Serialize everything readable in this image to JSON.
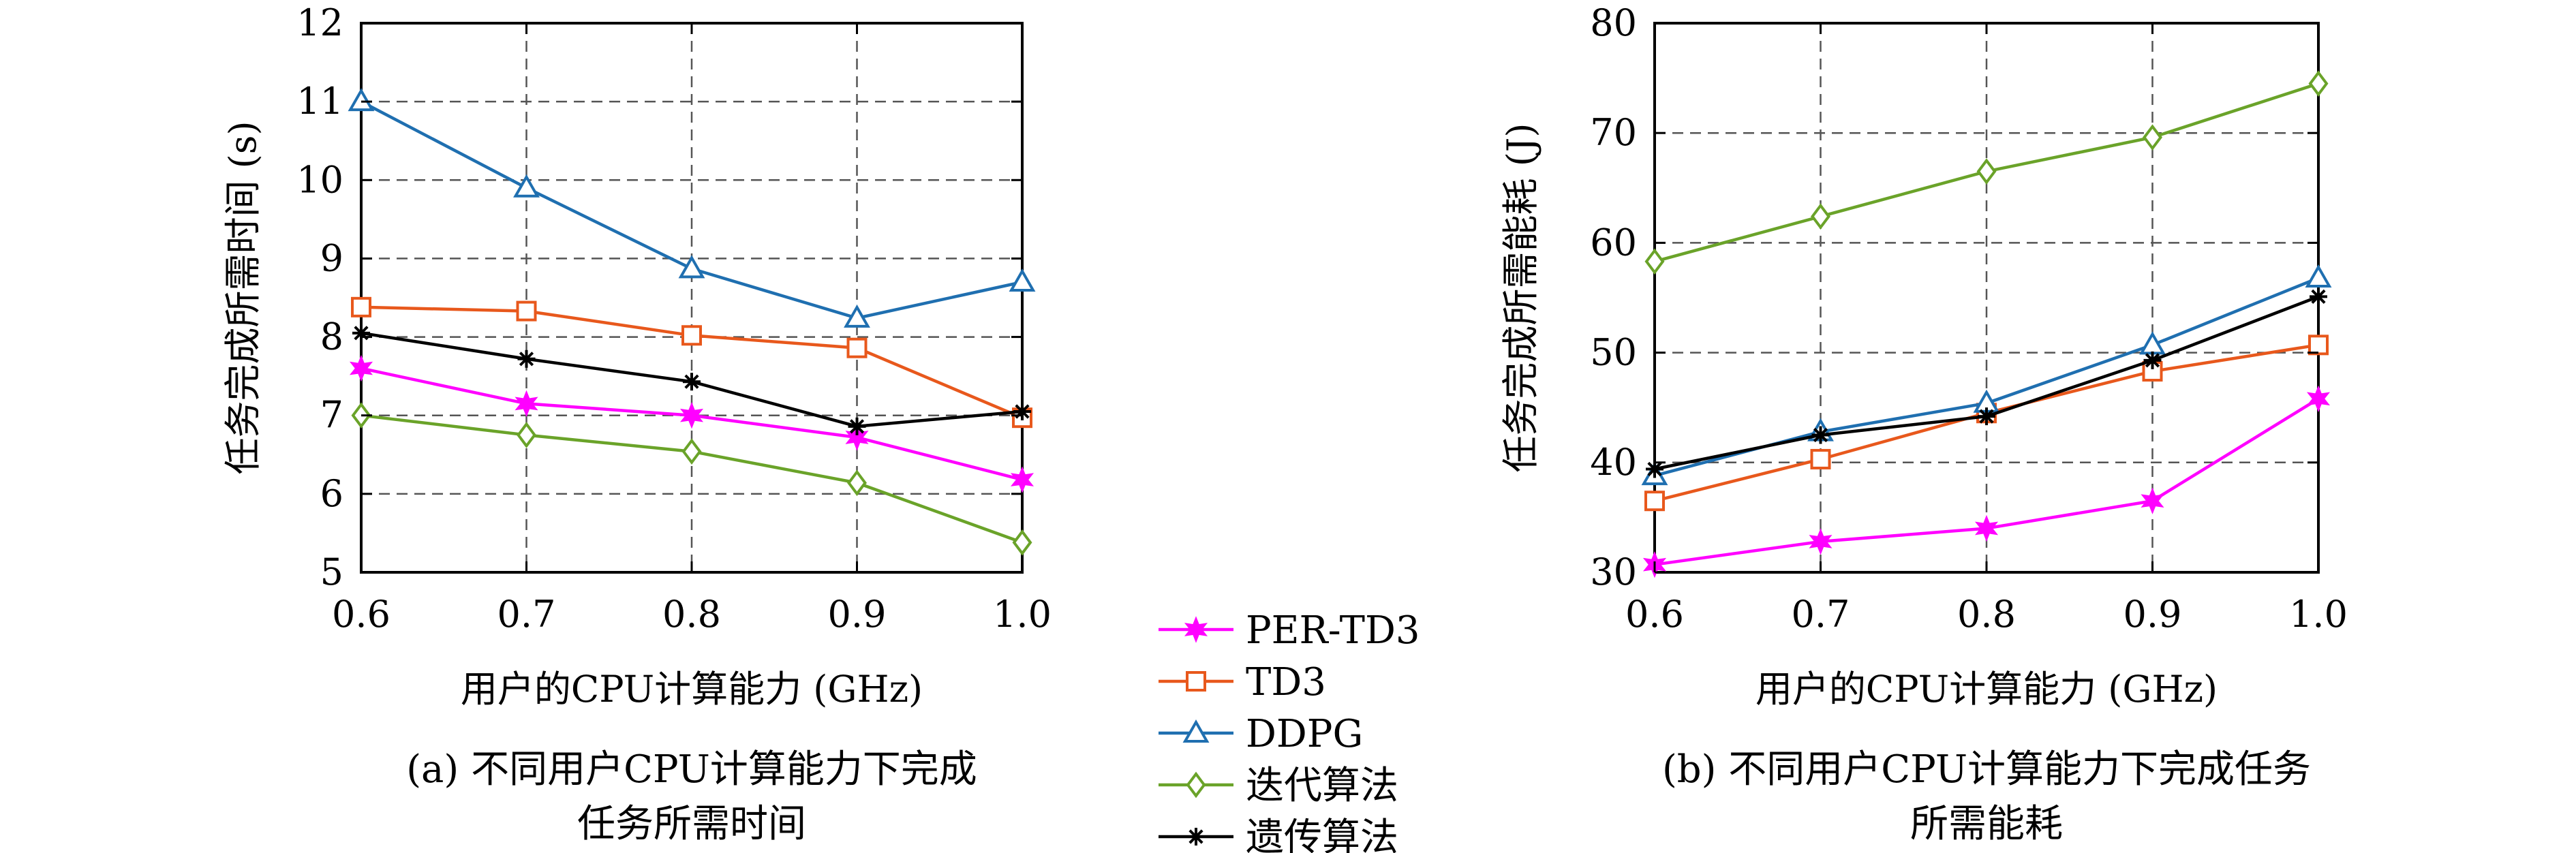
{
  "chart_data": [
    {
      "type": "line",
      "x": [
        0.6,
        0.7,
        0.8,
        0.9,
        1.0
      ],
      "xticks": [
        "0.6",
        "0.7",
        "0.8",
        "0.9",
        "1.0"
      ],
      "yticks": [
        "5",
        "6",
        "7",
        "8",
        "9",
        "10",
        "11",
        "12"
      ],
      "xlim": [
        0.6,
        1.0
      ],
      "ylim": [
        5,
        12
      ],
      "xlabel": "用户的CPU计算能力 (GHz)",
      "ylabel": "任务完成所需时间 (s)",
      "caption_lines": [
        "(a) 不同用户CPU计算能力下完成",
        "任务所需时间"
      ],
      "grid": true,
      "series": [
        {
          "name": "PER-TD3",
          "values": [
            7.6,
            7.15,
            7.0,
            6.72,
            6.18
          ]
        },
        {
          "name": "TD3",
          "values": [
            8.38,
            8.33,
            8.02,
            7.86,
            6.97
          ]
        },
        {
          "name": "DDPG",
          "values": [
            11.0,
            9.9,
            8.87,
            8.24,
            8.7
          ]
        },
        {
          "name": "迭代算法",
          "values": [
            7.0,
            6.75,
            6.54,
            6.14,
            5.38
          ]
        },
        {
          "name": "遗传算法",
          "values": [
            8.05,
            7.72,
            7.43,
            6.86,
            7.05
          ]
        }
      ]
    },
    {
      "type": "line",
      "x": [
        0.6,
        0.7,
        0.8,
        0.9,
        1.0
      ],
      "xticks": [
        "0.6",
        "0.7",
        "0.8",
        "0.9",
        "1.0"
      ],
      "yticks": [
        "30",
        "40",
        "50",
        "60",
        "70",
        "80"
      ],
      "xlim": [
        0.6,
        1.0
      ],
      "ylim": [
        30,
        80
      ],
      "xlabel": "用户的CPU计算能力 (GHz)",
      "ylabel": "任务完成所需能耗 (J)",
      "caption_lines": [
        "(b) 不同用户CPU计算能力下完成任务",
        "所需能耗"
      ],
      "grid": true,
      "series": [
        {
          "name": "PER-TD3",
          "values": [
            30.7,
            32.8,
            34.0,
            36.5,
            45.8
          ]
        },
        {
          "name": "TD3",
          "values": [
            36.5,
            40.3,
            44.5,
            48.3,
            50.7
          ]
        },
        {
          "name": "DDPG",
          "values": [
            38.8,
            42.8,
            45.4,
            50.7,
            56.8
          ]
        },
        {
          "name": "迭代算法",
          "values": [
            58.3,
            62.4,
            66.5,
            69.6,
            74.5
          ]
        },
        {
          "name": "遗传算法",
          "values": [
            39.4,
            42.5,
            44.2,
            49.3,
            55.1
          ]
        }
      ]
    }
  ],
  "legend": {
    "placement": "bottom-center",
    "items": [
      {
        "label": "PER-TD3",
        "color": "#ff00ff",
        "marker": "star"
      },
      {
        "label": "TD3",
        "color": "#e8581c",
        "marker": "square"
      },
      {
        "label": "DDPG",
        "color": "#1f6fb0",
        "marker": "triangle"
      },
      {
        "label": "迭代算法",
        "color": "#6aa329",
        "marker": "diamond"
      },
      {
        "label": "遗传算法",
        "color": "#000000",
        "marker": "asterisk"
      }
    ]
  }
}
